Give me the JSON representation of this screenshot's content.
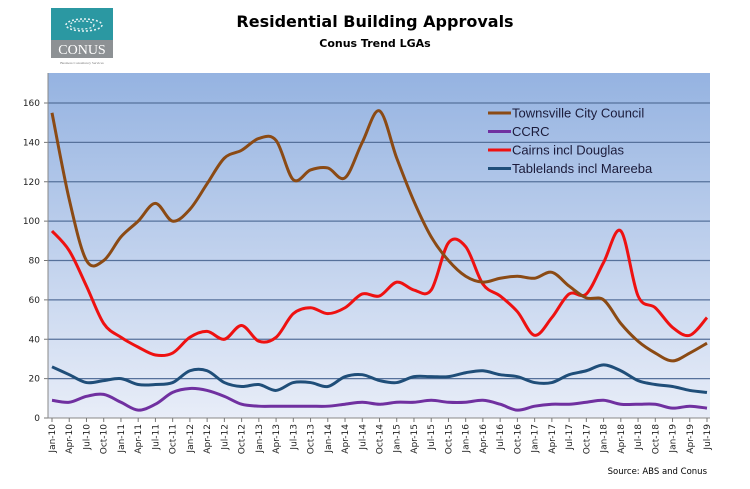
{
  "logo": {
    "name": "CONUS",
    "tagline": "Business Consultancy Services",
    "colors": {
      "top": "#2b98a2",
      "bottom": "#8d9194"
    }
  },
  "chart_data": {
    "type": "line",
    "title": "Residential Building Approvals",
    "subtitle": "Conus Trend LGAs",
    "source": "Source: ABS and Conus",
    "xlabel": "",
    "ylabel": "",
    "ylim": [
      0,
      175
    ],
    "yticks": [
      0,
      20,
      40,
      60,
      80,
      100,
      120,
      140,
      160
    ],
    "grid": true,
    "legend_position": "top-right",
    "categories": [
      "Jan-10",
      "Apr-10",
      "Jul-10",
      "Oct-10",
      "Jan-11",
      "Apr-11",
      "Jul-11",
      "Oct-11",
      "Jan-12",
      "Apr-12",
      "Jul-12",
      "Oct-12",
      "Jan-13",
      "Apr-13",
      "Jul-13",
      "Oct-13",
      "Jan-14",
      "Apr-14",
      "Jul-14",
      "Oct-14",
      "Jan-15",
      "Apr-15",
      "Jul-15",
      "Oct-15",
      "Jan-16",
      "Apr-16",
      "Jul-16",
      "Oct-16",
      "Jan-17",
      "Apr-17",
      "Jul-17",
      "Oct-17",
      "Jan-18",
      "Apr-18",
      "Jul-18",
      "Oct-18",
      "Jan-19",
      "Apr-19",
      "Jul-19"
    ],
    "series": [
      {
        "name": "Townsville City Council",
        "color": "#8b4a14",
        "values": [
          155,
          111,
          80,
          80,
          92,
          100,
          109,
          100,
          106,
          119,
          132,
          136,
          142,
          141,
          121,
          126,
          127,
          122,
          140,
          156,
          132,
          110,
          92,
          80,
          72,
          69,
          71,
          72,
          71,
          74,
          67,
          61,
          60,
          48,
          39,
          33,
          29,
          33,
          38
        ]
      },
      {
        "name": "CCRC",
        "color": "#7030a0",
        "values": [
          9,
          8,
          11,
          12,
          8,
          4,
          7,
          13,
          15,
          14,
          11,
          7,
          6,
          6,
          6,
          6,
          6,
          7,
          8,
          7,
          8,
          8,
          9,
          8,
          8,
          9,
          7,
          4,
          6,
          7,
          7,
          8,
          9,
          7,
          7,
          7,
          5,
          6,
          5
        ]
      },
      {
        "name": "Cairns incl Douglas",
        "color": "#ee1111",
        "values": [
          95,
          85,
          67,
          48,
          41,
          36,
          32,
          33,
          41,
          44,
          40,
          47,
          39,
          41,
          53,
          56,
          53,
          56,
          63,
          62,
          69,
          65,
          65,
          89,
          87,
          68,
          62,
          54,
          42,
          51,
          63,
          63,
          79,
          95,
          62,
          56,
          46,
          42,
          51
        ]
      },
      {
        "name": "Tablelands incl Mareeba",
        "color": "#1f4e79",
        "values": [
          26,
          22,
          18,
          19,
          20,
          17,
          17,
          18,
          24,
          24,
          18,
          16,
          17,
          14,
          18,
          18,
          16,
          21,
          22,
          19,
          18,
          21,
          21,
          21,
          23,
          24,
          22,
          21,
          18,
          18,
          22,
          24,
          27,
          24,
          19,
          17,
          16,
          14,
          13
        ]
      }
    ]
  }
}
